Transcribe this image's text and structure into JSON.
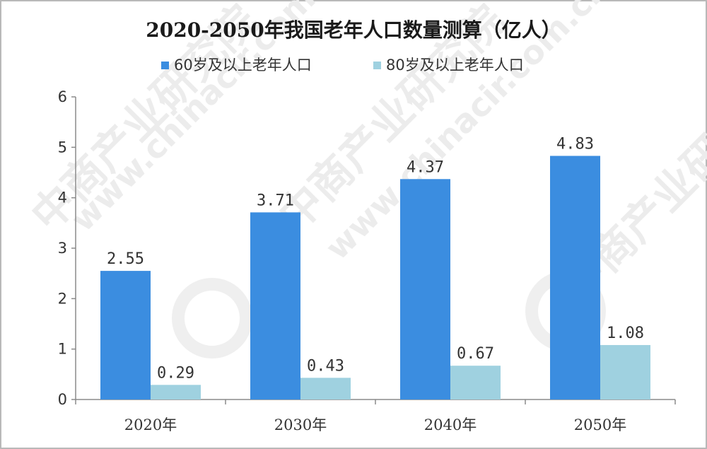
{
  "chart_data": {
    "type": "bar",
    "title": "2020-2050年我国老年人口数量测算（亿人）",
    "categories": [
      "2020年",
      "2030年",
      "2040年",
      "2050年"
    ],
    "series": [
      {
        "name": "60岁及以上老年人口",
        "values": [
          2.55,
          3.71,
          4.37,
          4.83
        ],
        "value_labels": [
          "2.55",
          "3.71",
          "4.37",
          "4.83"
        ],
        "color": "#3b8de0"
      },
      {
        "name": "80岁及以上老年人口",
        "values": [
          0.29,
          0.43,
          0.67,
          1.08
        ],
        "value_labels": [
          "0.29",
          "0.43",
          "0.67",
          "1.08"
        ],
        "color": "#9fd1e0"
      }
    ],
    "yticks": [
      "0",
      "1",
      "2",
      "3",
      "4",
      "5",
      "6"
    ],
    "ylim": [
      0,
      6
    ],
    "xlabel": "",
    "ylabel": "",
    "grid": false,
    "legend": "top"
  },
  "watermark": {
    "text_cn": "中商产业研究院",
    "text_url": "www.chinacir.com.cn"
  }
}
